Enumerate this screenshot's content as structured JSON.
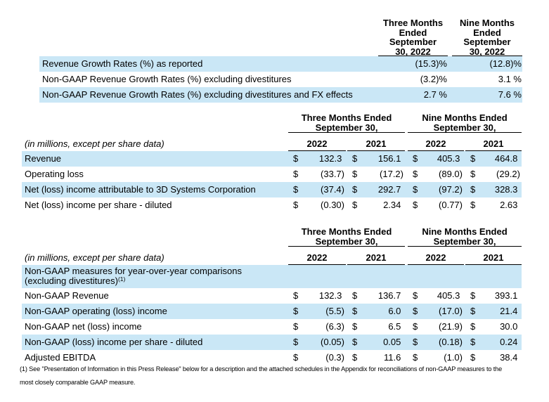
{
  "colors": {
    "background": "#ffffff",
    "highlight_row": "#cae7f6",
    "rule": "#000000",
    "text": "#000000"
  },
  "currency_symbol": "$",
  "growth_table": {
    "column_headers": [
      "Three Months\nEnded\nSeptember\n30, 2022",
      "Nine Months\nEnded\nSeptember\n30, 2022"
    ],
    "rows": [
      {
        "label": "Revenue Growth Rates (%) as reported",
        "values": [
          "(15.3)%",
          "(12.8)%"
        ]
      },
      {
        "label": "Non-GAAP Revenue Growth Rates (%) excluding divestitures",
        "values": [
          "(3.2)%",
          "3.1 %"
        ]
      },
      {
        "label": "Non-GAAP Revenue Growth Rates (%) excluding divestitures and FX effects",
        "values": [
          "2.7 %",
          "7.6 %"
        ]
      }
    ]
  },
  "gaap_table": {
    "group_headers": [
      "Three Months Ended\nSeptember 30,",
      "Nine Months Ended\nSeptember 30,"
    ],
    "year_headers": [
      "2022",
      "2021",
      "2022",
      "2021"
    ],
    "units_note": "(in millions, except per share data)",
    "rows": [
      {
        "label": "Revenue",
        "values": [
          "132.3 ",
          "156.1 ",
          "405.3 ",
          "464.8 "
        ]
      },
      {
        "label": "Operating loss",
        "values": [
          "(33.7)",
          "(17.2)",
          "(89.0)",
          "(29.2)"
        ]
      },
      {
        "label": "Net (loss) income attributable to 3D Systems Corporation",
        "values": [
          "(37.4)",
          "292.7 ",
          "(97.2)",
          "328.3 "
        ]
      },
      {
        "label": "Net (loss) income per share - diluted",
        "values": [
          "(0.30)",
          "2.34 ",
          "(0.77)",
          "2.63 "
        ]
      }
    ]
  },
  "non_gaap_table": {
    "group_headers": [
      "Three Months Ended\nSeptember 30,",
      "Nine Months Ended\nSeptember 30,"
    ],
    "year_headers": [
      "2022",
      "2021",
      "2022",
      "2021"
    ],
    "units_note": "(in millions, except per share data)",
    "section_label": "Non-GAAP measures for year-over-year comparisons\n(excluding divestitures)",
    "section_footnote_ref": "(1)",
    "rows": [
      {
        "label": "Non-GAAP Revenue",
        "values": [
          "132.3 ",
          "136.7 ",
          "405.3 ",
          "393.1 "
        ]
      },
      {
        "label": "Non-GAAP operating (loss) income",
        "values": [
          "(5.5)",
          "6.0 ",
          "(17.0)",
          "21.4 "
        ]
      },
      {
        "label": "Non-GAAP net (loss) income",
        "values": [
          "(6.3)",
          "6.5 ",
          "(21.9)",
          "30.0 "
        ]
      },
      {
        "label": "Non-GAAP (loss) income per share - diluted",
        "values": [
          "(0.05)",
          "0.05 ",
          "(0.18)",
          "0.24 "
        ]
      },
      {
        "label": "Adjusted EBITDA",
        "values": [
          "(0.3)",
          "11.6 ",
          "(1.0)",
          "38.4 "
        ]
      }
    ]
  },
  "footnote": "(1) See \"Presentation of Information in this Press Release\" below for a description and the attached schedules in the Appendix for reconciliations of non-GAAP measures to the\nmost closely comparable GAAP measure."
}
